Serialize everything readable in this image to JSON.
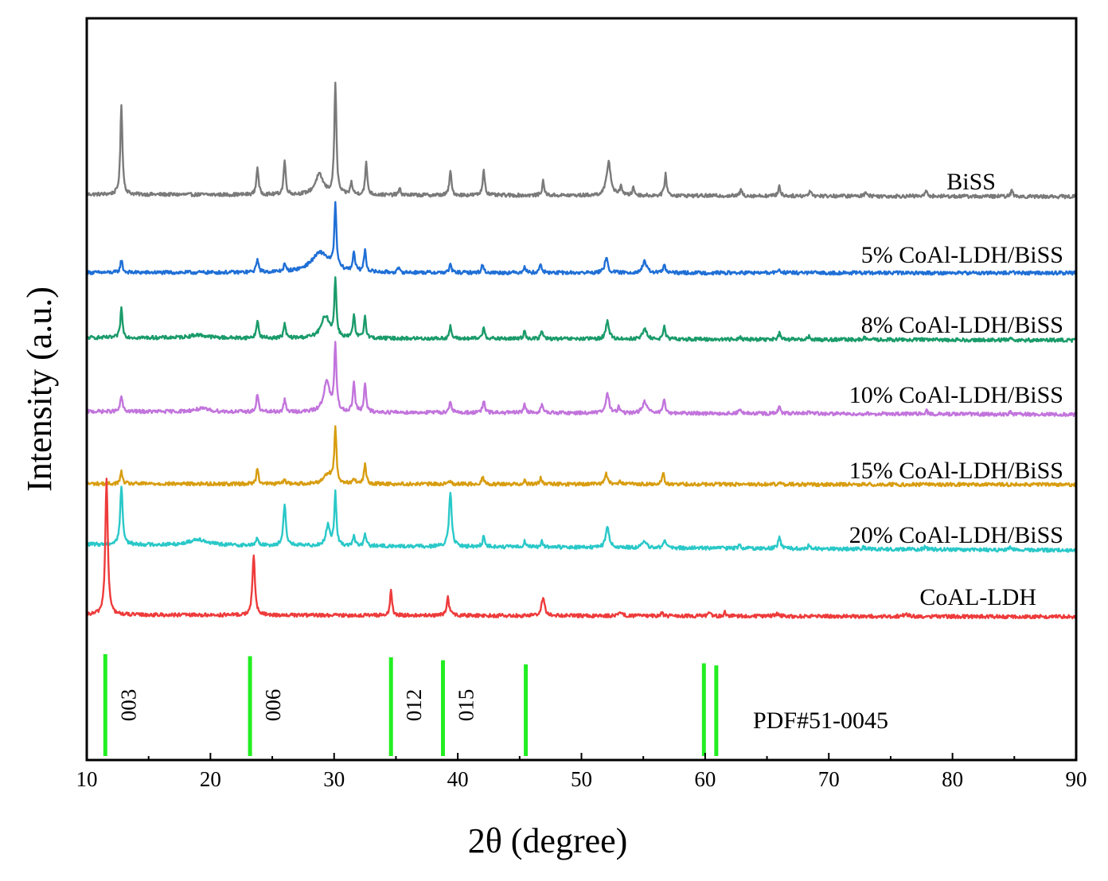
{
  "chart_data": {
    "type": "line",
    "title": "",
    "xlabel": "2θ (degree)",
    "ylabel": "Intensity (a.u.)",
    "xlim": [
      10,
      90
    ],
    "xticks": [
      "10",
      "20",
      "30",
      "40",
      "50",
      "60",
      "70",
      "80",
      "90"
    ],
    "series": [
      {
        "name": "BiSS",
        "label": "BiSS",
        "color": "#7a7a7a",
        "baseline_start": 0.63,
        "baseline_end": 0.52,
        "peaks": [
          [
            12.8,
            4.5,
            0.1
          ],
          [
            23.8,
            1.4,
            0.1
          ],
          [
            26.0,
            1.7,
            0.1
          ],
          [
            28.8,
            1.0,
            0.4
          ],
          [
            30.1,
            5.6,
            0.1
          ],
          [
            31.4,
            0.6,
            0.1
          ],
          [
            32.6,
            1.6,
            0.1
          ],
          [
            35.3,
            0.3,
            0.1
          ],
          [
            39.4,
            1.2,
            0.1
          ],
          [
            42.1,
            1.3,
            0.1
          ],
          [
            46.9,
            0.7,
            0.1
          ],
          [
            52.2,
            1.7,
            0.2
          ],
          [
            53.2,
            0.5,
            0.1
          ],
          [
            54.2,
            0.4,
            0.1
          ],
          [
            56.8,
            1.1,
            0.1
          ],
          [
            62.9,
            0.3,
            0.1
          ],
          [
            66.0,
            0.5,
            0.1
          ],
          [
            68.5,
            0.3,
            0.1
          ],
          [
            73.0,
            0.25,
            0.1
          ],
          [
            77.9,
            0.3,
            0.1
          ],
          [
            84.8,
            0.3,
            0.1
          ]
        ]
      },
      {
        "name": "5% CoAl-LDH/BiSS",
        "label": "5% CoAl-LDH/BiSS",
        "color": "#1f6fd6",
        "baseline_start": 0.62,
        "baseline_end": 0.6,
        "peaks": [
          [
            12.8,
            0.65,
            0.1
          ],
          [
            23.8,
            0.7,
            0.1
          ],
          [
            26.0,
            0.35,
            0.1
          ],
          [
            28.9,
            1.0,
            0.9
          ],
          [
            30.1,
            3.1,
            0.1
          ],
          [
            31.6,
            1.0,
            0.1
          ],
          [
            32.5,
            1.1,
            0.1
          ],
          [
            35.2,
            0.2,
            0.1
          ],
          [
            39.4,
            0.4,
            0.1
          ],
          [
            42.0,
            0.4,
            0.1
          ],
          [
            45.4,
            0.35,
            0.1
          ],
          [
            46.7,
            0.45,
            0.1
          ],
          [
            52.0,
            0.75,
            0.15
          ],
          [
            55.1,
            0.55,
            0.2
          ],
          [
            56.7,
            0.4,
            0.1
          ],
          [
            66.0,
            0.2,
            0.1
          ],
          [
            84.8,
            0.1,
            0.1
          ]
        ]
      },
      {
        "name": "8% CoAl-LDH/BiSS",
        "label": "8% CoAl-LDH/BiSS",
        "color": "#1a9b6a",
        "baseline_start": 0.63,
        "baseline_end": 0.5,
        "peaks": [
          [
            12.8,
            1.5,
            0.1
          ],
          [
            19.0,
            0.15,
            0.8
          ],
          [
            23.8,
            0.9,
            0.1
          ],
          [
            26.0,
            0.7,
            0.1
          ],
          [
            29.3,
            1.1,
            0.4
          ],
          [
            30.1,
            2.8,
            0.1
          ],
          [
            31.6,
            1.1,
            0.1
          ],
          [
            32.5,
            1.1,
            0.1
          ],
          [
            39.4,
            0.6,
            0.1
          ],
          [
            42.1,
            0.6,
            0.1
          ],
          [
            45.4,
            0.4,
            0.1
          ],
          [
            46.8,
            0.4,
            0.1
          ],
          [
            52.1,
            0.9,
            0.15
          ],
          [
            55.1,
            0.5,
            0.2
          ],
          [
            56.7,
            0.6,
            0.1
          ],
          [
            62.8,
            0.15,
            0.1
          ],
          [
            66.0,
            0.3,
            0.1
          ],
          [
            68.4,
            0.15,
            0.1
          ],
          [
            72.9,
            0.1,
            0.1
          ],
          [
            77.9,
            0.1,
            0.1
          ],
          [
            84.7,
            0.1,
            0.1
          ]
        ]
      },
      {
        "name": "10% CoAl-LDH/BiSS",
        "label": "10% CoAl-LDH/BiSS",
        "color": "#c274dc",
        "baseline_start": 0.6,
        "baseline_end": 0.45,
        "peaks": [
          [
            12.8,
            0.8,
            0.1
          ],
          [
            19.3,
            0.15,
            0.8
          ],
          [
            23.8,
            0.9,
            0.1
          ],
          [
            26.0,
            0.6,
            0.1
          ],
          [
            29.4,
            1.5,
            0.3
          ],
          [
            30.1,
            3.3,
            0.1
          ],
          [
            31.6,
            1.5,
            0.1
          ],
          [
            32.5,
            1.4,
            0.1
          ],
          [
            39.4,
            0.6,
            0.1
          ],
          [
            42.1,
            0.6,
            0.1
          ],
          [
            45.4,
            0.45,
            0.1
          ],
          [
            46.8,
            0.45,
            0.1
          ],
          [
            52.1,
            1.0,
            0.15
          ],
          [
            53.0,
            0.3,
            0.1
          ],
          [
            55.1,
            0.6,
            0.2
          ],
          [
            56.7,
            0.7,
            0.1
          ],
          [
            62.8,
            0.2,
            0.1
          ],
          [
            66.0,
            0.35,
            0.1
          ],
          [
            68.4,
            0.15,
            0.1
          ],
          [
            77.9,
            0.15,
            0.1
          ],
          [
            84.7,
            0.1,
            0.1
          ]
        ]
      },
      {
        "name": "15% CoAl-LDH/BiSS",
        "label": "15% CoAl-LDH/BiSS",
        "color": "#d89d10",
        "baseline_start": 0.57,
        "baseline_end": 0.52,
        "peaks": [
          [
            12.8,
            0.6,
            0.1
          ],
          [
            23.8,
            0.8,
            0.1
          ],
          [
            26.0,
            0.25,
            0.1
          ],
          [
            29.5,
            0.5,
            0.4
          ],
          [
            30.1,
            2.8,
            0.1
          ],
          [
            31.6,
            0.3,
            0.1
          ],
          [
            32.5,
            1.0,
            0.1
          ],
          [
            39.4,
            0.2,
            0.1
          ],
          [
            42.0,
            0.4,
            0.1
          ],
          [
            45.4,
            0.2,
            0.1
          ],
          [
            46.7,
            0.3,
            0.1
          ],
          [
            52.0,
            0.5,
            0.15
          ],
          [
            53.1,
            0.2,
            0.1
          ],
          [
            56.6,
            0.6,
            0.1
          ],
          [
            66.0,
            0.1,
            0.1
          ]
        ]
      },
      {
        "name": "20% CoAl-LDH/BiSS",
        "label": "20% CoAl-LDH/BiSS",
        "color": "#2ac8c8",
        "baseline_start": 0.72,
        "baseline_end": 0.42,
        "peaks": [
          [
            12.8,
            2.9,
            0.12
          ],
          [
            19.0,
            0.3,
            0.8
          ],
          [
            23.8,
            0.4,
            0.1
          ],
          [
            26.0,
            2.1,
            0.12
          ],
          [
            29.5,
            1.0,
            0.2
          ],
          [
            30.1,
            2.6,
            0.1
          ],
          [
            31.6,
            0.5,
            0.1
          ],
          [
            32.5,
            0.6,
            0.1
          ],
          [
            39.4,
            2.7,
            0.13
          ],
          [
            42.1,
            0.6,
            0.1
          ],
          [
            45.4,
            0.3,
            0.1
          ],
          [
            46.8,
            0.3,
            0.1
          ],
          [
            52.1,
            1.1,
            0.15
          ],
          [
            55.1,
            0.3,
            0.2
          ],
          [
            56.7,
            0.4,
            0.1
          ],
          [
            62.8,
            0.2,
            0.1
          ],
          [
            66.0,
            0.55,
            0.12
          ],
          [
            68.4,
            0.2,
            0.1
          ],
          [
            72.8,
            0.1,
            0.1
          ],
          [
            77.8,
            0.15,
            0.1
          ],
          [
            84.7,
            0.15,
            0.1
          ]
        ]
      },
      {
        "name": "CoAL-LDH",
        "label": "CoAL-LDH",
        "color": "#ee3b3b",
        "baseline_start": 0.5,
        "baseline_end": 0.4,
        "peaks": [
          [
            11.6,
            6.8,
            0.12
          ],
          [
            23.5,
            3.0,
            0.12
          ],
          [
            34.6,
            1.2,
            0.1
          ],
          [
            39.2,
            0.9,
            0.12
          ],
          [
            46.9,
            0.9,
            0.15
          ],
          [
            53.2,
            0.2,
            0.2
          ],
          [
            56.5,
            0.15,
            0.1
          ],
          [
            60.3,
            0.2,
            0.1
          ],
          [
            61.6,
            0.2,
            0.1
          ],
          [
            65.8,
            0.1,
            0.2
          ],
          [
            76.2,
            0.08,
            0.3
          ]
        ]
      }
    ],
    "reference": {
      "name": "PDF#51-0045",
      "label": "PDF#51-0045",
      "color": "#22ee22",
      "lines": [
        {
          "x": 11.5,
          "rel": 1.0,
          "hkl": "003"
        },
        {
          "x": 23.2,
          "rel": 0.98,
          "hkl": "006"
        },
        {
          "x": 34.6,
          "rel": 0.97,
          "hkl": "012"
        },
        {
          "x": 38.8,
          "rel": 0.94,
          "hkl": "015"
        },
        {
          "x": 45.5,
          "rel": 0.9,
          "hkl": ""
        },
        {
          "x": 59.9,
          "rel": 0.91,
          "hkl": ""
        },
        {
          "x": 60.9,
          "rel": 0.89,
          "hkl": ""
        }
      ]
    }
  }
}
